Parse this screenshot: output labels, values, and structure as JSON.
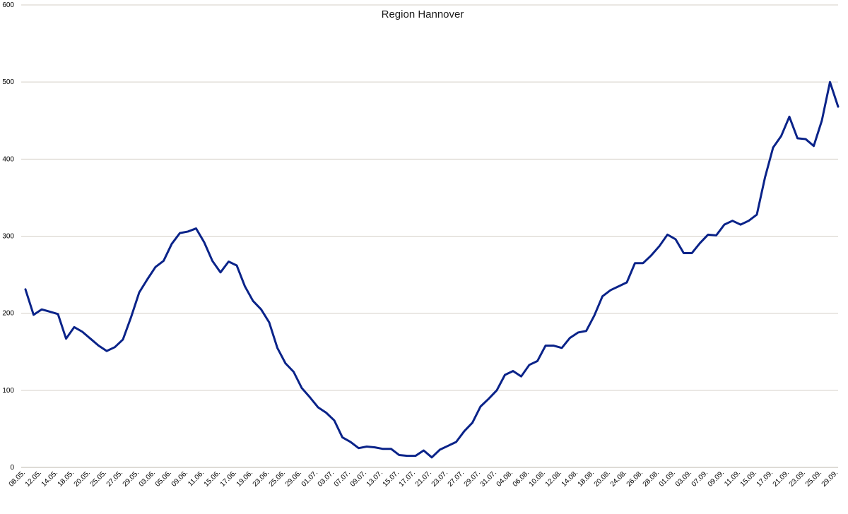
{
  "chart_data": {
    "type": "line",
    "title": "Region Hannover",
    "xlabel": "",
    "ylabel": "",
    "ylim": [
      0,
      600
    ],
    "yticks": [
      0,
      100,
      200,
      300,
      400,
      500,
      600
    ],
    "grid": true,
    "legend": "none",
    "line_color": "#0a2389",
    "x_tick_labels": [
      "08.05.",
      "12.05.",
      "14.05.",
      "18.05.",
      "20.05.",
      "25.05.",
      "27.05.",
      "29.05.",
      "03.06.",
      "05.06.",
      "09.06.",
      "11.06.",
      "15.06.",
      "17.06.",
      "19.06.",
      "23.06.",
      "25.06.",
      "29.06.",
      "01.07.",
      "03.07.",
      "07.07.",
      "09.07.",
      "13.07.",
      "15.07.",
      "17.07.",
      "21.07.",
      "23.07.",
      "27.07.",
      "29.07.",
      "31.07.",
      "04.08.",
      "06.08.",
      "10.08.",
      "12.08.",
      "14.08.",
      "18.08.",
      "20.08.",
      "24.08.",
      "26.08.",
      "28.08.",
      "01.09.",
      "03.09.",
      "07.09.",
      "09.09.",
      "11.09.",
      "15.09.",
      "17.09.",
      "21.09.",
      "23.09.",
      "25.09.",
      "29.09."
    ],
    "series": [
      {
        "values": [
          231,
          198,
          205,
          202,
          199,
          167,
          182,
          176,
          167,
          158,
          151,
          156,
          166,
          195,
          227,
          244,
          260,
          268,
          290,
          304,
          306,
          310,
          292,
          268,
          253,
          267,
          262,
          235,
          216,
          205,
          188,
          155,
          135,
          124,
          103,
          91,
          78,
          71,
          61,
          39,
          33,
          25,
          27,
          26,
          24,
          24,
          16,
          15,
          15,
          22,
          13,
          23,
          28,
          33,
          47,
          58,
          79,
          89,
          100,
          120,
          125,
          118,
          133,
          138,
          158,
          158,
          155,
          168,
          175,
          177,
          197,
          222,
          230,
          235,
          240,
          265,
          265,
          275,
          287,
          302,
          296,
          278,
          278,
          291,
          302,
          301,
          315,
          320,
          315,
          320,
          328,
          376,
          415,
          430,
          455,
          427,
          426,
          417,
          450,
          500,
          468
        ]
      }
    ]
  }
}
